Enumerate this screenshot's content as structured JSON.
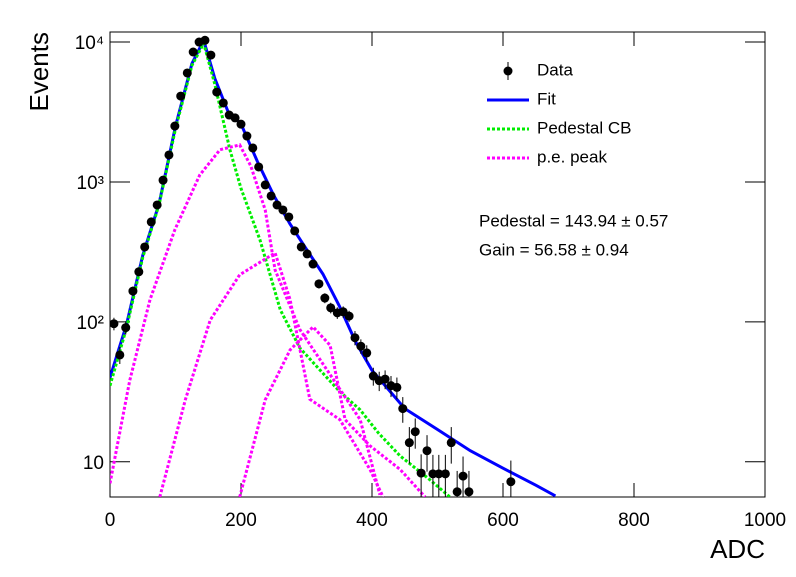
{
  "chart_data": {
    "type": "histfit",
    "x_label": "ADC",
    "y_label": "Events",
    "xlim": [
      0,
      1000
    ],
    "xticks": [
      0,
      200,
      400,
      600,
      800,
      1000
    ],
    "ylim": [
      5.6,
      11800
    ],
    "log_y": true,
    "yticks": [
      {
        "value": 10,
        "label": "10"
      },
      {
        "value": 100,
        "label": "10²"
      },
      {
        "value": 1000,
        "label": "10³"
      },
      {
        "value": 10000,
        "label": "10⁴"
      }
    ],
    "legend": "top-right",
    "annotations": [
      "Pedestal = 143.94 ± 0.57",
      "Gain = 56.58 ± 0.94"
    ],
    "data": {
      "name": "Data",
      "color": "#000000",
      "x": [
        6,
        15,
        24,
        35,
        44,
        53,
        63,
        72,
        81,
        90,
        99,
        108,
        118,
        127,
        136,
        145,
        154,
        163,
        173,
        182,
        191,
        200,
        209,
        218,
        227,
        237,
        246,
        255,
        264,
        273,
        282,
        292,
        301,
        310,
        319,
        328,
        337,
        347,
        356,
        365,
        374,
        383,
        392,
        402,
        411,
        420,
        429,
        438,
        447,
        457,
        466,
        475,
        484,
        493,
        502,
        512,
        521,
        530,
        539,
        548,
        612
      ],
      "values": [
        97,
        58,
        91,
        166,
        228,
        343,
        518,
        685,
        1030,
        1560,
        2510,
        4110,
        6010,
        8490,
        10000,
        10300,
        8070,
        4390,
        3670,
        3010,
        2870,
        2590,
        2130,
        1750,
        1280,
        953,
        794,
        685,
        631,
        562,
        447,
        343,
        306,
        259,
        187,
        148,
        126,
        116,
        118,
        110,
        77,
        67,
        60,
        41,
        38,
        39,
        35,
        34,
        24,
        13.7,
        16.4,
        8.3,
        12,
        8.2,
        8.2,
        8.2,
        13.7,
        6.1,
        7.9,
        6.1,
        7.2
      ],
      "errors": [
        10,
        8,
        10,
        13,
        15,
        19,
        23,
        26,
        32,
        40,
        50,
        64,
        78,
        92,
        100,
        101,
        90,
        66,
        61,
        55,
        54,
        51,
        46,
        42,
        36,
        31,
        28,
        26,
        25,
        24,
        21,
        19,
        17,
        16,
        14,
        12,
        11,
        11,
        11,
        10,
        9,
        8,
        8,
        6,
        6,
        6,
        6,
        6,
        5,
        4,
        4,
        3,
        3.5,
        3,
        3,
        3,
        4,
        2.5,
        3,
        2.5,
        3
      ]
    },
    "curves": [
      {
        "name": "Fit",
        "color": "#0000ff",
        "style": "solid",
        "components": [
          {
            "x": [
              0,
              25,
              50,
              75,
              100,
              125,
              143,
              160,
              180,
              200,
              225,
              250,
              275,
              300,
              325,
              350,
              375,
              400,
              450,
              500,
              550,
              600,
              650,
              680
            ],
            "values": [
              40,
              95,
              300,
              700,
              2500,
              7000,
              10300,
              5500,
              3200,
              2600,
              1400,
              800,
              500,
              330,
              220,
              130,
              72,
              45,
              24,
              17,
              12,
              9,
              6.8,
              5.7
            ]
          }
        ]
      },
      {
        "name": "Pedestal CB",
        "color": "#00ee00",
        "style": "dotted",
        "components": [
          {
            "x": [
              0,
              25,
              50,
              75,
              100,
              125,
              143,
              160,
              183,
              200,
              229,
              260,
              290,
              321,
              350,
              382,
              410,
              443,
              489,
              519
            ],
            "values": [
              35,
              90,
              290,
              690,
              2400,
              6800,
              9800,
              5000,
              1700,
              900,
              385,
              122,
              65,
              45,
              32,
              23.5,
              16,
              11,
              7.4,
              5.6
            ]
          }
        ]
      },
      {
        "name": "p.e. peak",
        "color": "#ff00ff",
        "style": "dotted",
        "components": [
          {
            "x": [
              0,
              30,
              61,
              99,
              137,
              168,
              198,
              215,
              237,
              252,
              290,
              336,
              382,
              412
            ],
            "values": [
              7,
              38,
              144,
              454,
              1120,
              1700,
              1840,
              1300,
              631,
              235,
              88,
              42,
              20,
              5.8
            ]
          },
          {
            "x": [
              76,
              115,
              153,
              198,
              252,
              275,
              305,
              351,
              397,
              417
            ],
            "values": [
              5.6,
              27.7,
              103,
              217,
              311,
              144,
              28,
              20,
              8.8,
              5.6
            ]
          },
          {
            "x": [
              198,
              237,
              275,
              310,
              336,
              359,
              397,
              443,
              481
            ],
            "values": [
              5.6,
              27.7,
              63,
              92,
              68,
              20,
              13,
              8.8,
              5.6
            ]
          }
        ]
      }
    ]
  }
}
